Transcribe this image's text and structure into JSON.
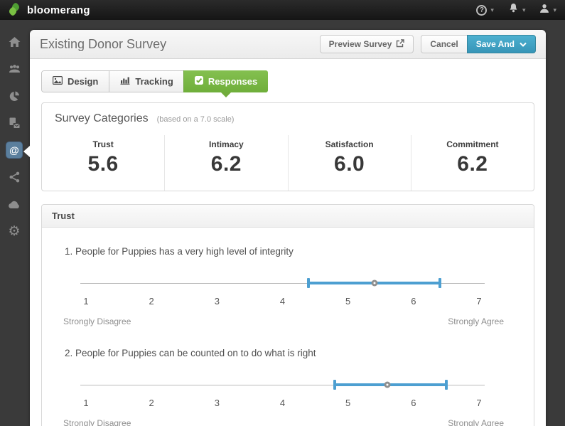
{
  "topbar": {
    "brand": "bloomerang"
  },
  "glyphs": {
    "caret": "▾",
    "help": "?",
    "at": "@",
    "gear": "⚙"
  },
  "sidebar": {
    "items": [
      "home",
      "constituents",
      "reports",
      "letters",
      "email",
      "share",
      "cloud",
      "settings"
    ]
  },
  "header": {
    "title": "Existing Donor Survey",
    "preview_label": "Preview Survey",
    "cancel_label": "Cancel",
    "save_label": "Save And"
  },
  "tabs": [
    {
      "label": "Design",
      "icon": "image-icon",
      "active": false
    },
    {
      "label": "Tracking",
      "icon": "bar-chart-icon",
      "active": false
    },
    {
      "label": "Responses",
      "icon": "checkbox-icon",
      "active": true
    }
  ],
  "categories": {
    "title": "Survey Categories",
    "subtitle": "(based on a 7.0 scale)",
    "items": [
      {
        "label": "Trust",
        "value": "5.6"
      },
      {
        "label": "Intimacy",
        "value": "6.2"
      },
      {
        "label": "Satisfaction",
        "value": "6.0"
      },
      {
        "label": "Commitment",
        "value": "6.2"
      }
    ]
  },
  "trust_section": {
    "title": "Trust",
    "scale_min": 1,
    "scale_max": 7,
    "ticks": [
      "1",
      "2",
      "3",
      "4",
      "5",
      "6",
      "7"
    ],
    "left_label": "Strongly Disagree",
    "right_label": "Strongly Agree",
    "questions": [
      {
        "text": "1. People for Puppies has a very high level of integrity",
        "range_low": 4.4,
        "range_high": 6.4,
        "mean": 5.4
      },
      {
        "text": "2. People for Puppies can be counted on to do what is right",
        "range_low": 4.8,
        "range_high": 6.5,
        "mean": 5.6
      }
    ]
  },
  "colors": {
    "accent_green": "#74ae3d",
    "accent_teal": "#3f9fc0",
    "slider_blue": "#4d9fd1",
    "active_item_blue": "#5b7f9d"
  }
}
